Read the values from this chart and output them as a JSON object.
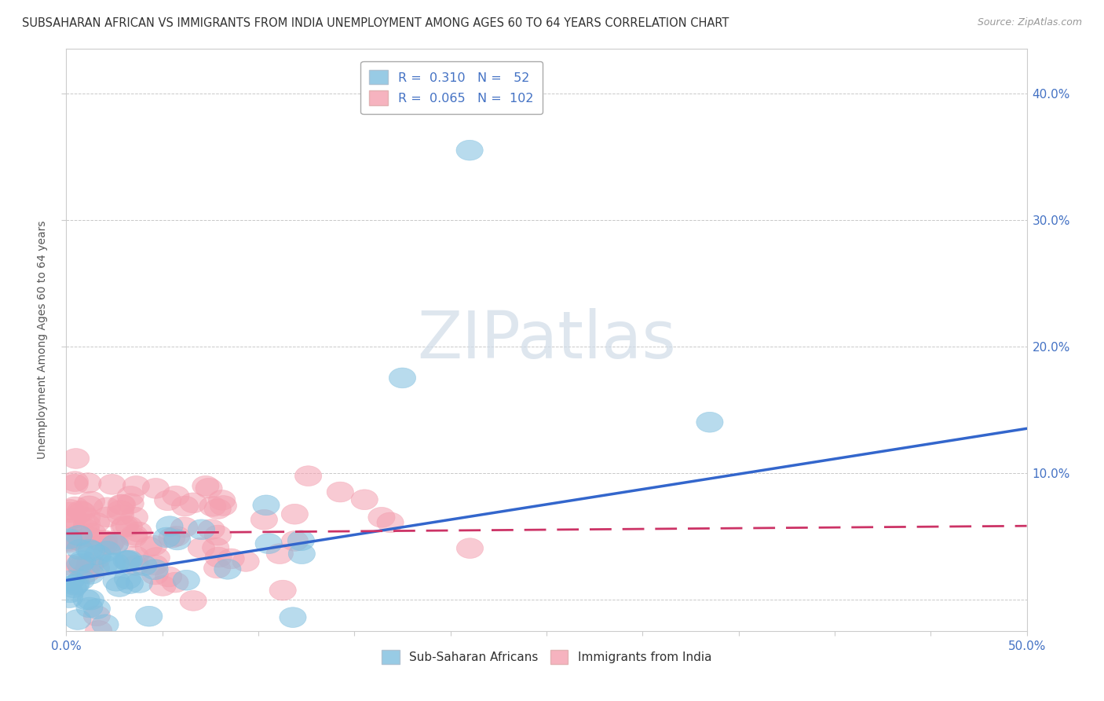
{
  "title": "SUBSAHARAN AFRICAN VS IMMIGRANTS FROM INDIA UNEMPLOYMENT AMONG AGES 60 TO 64 YEARS CORRELATION CHART",
  "source": "Source: ZipAtlas.com",
  "ylabel": "Unemployment Among Ages 60 to 64 years",
  "xlim": [
    0.0,
    0.5
  ],
  "ylim": [
    -0.025,
    0.435
  ],
  "xticks": [
    0.0,
    0.05,
    0.1,
    0.15,
    0.2,
    0.25,
    0.3,
    0.35,
    0.4,
    0.45,
    0.5
  ],
  "yticks": [
    0.0,
    0.1,
    0.2,
    0.3,
    0.4
  ],
  "ytick_labels_right": [
    "",
    "10.0%",
    "20.0%",
    "30.0%",
    "40.0%"
  ],
  "blue_color": "#7fbfdf",
  "pink_color": "#f4a0b0",
  "blue_fill": "#aad4ee",
  "pink_fill": "#f9c0cc",
  "blue_line_color": "#3366cc",
  "pink_line_color": "#cc3366",
  "legend_R_blue": "0.310",
  "legend_N_blue": "52",
  "legend_R_pink": "0.065",
  "legend_N_pink": "102",
  "watermark": "ZIPatlas",
  "legend_label_blue": "Sub-Saharan Africans",
  "legend_label_pink": "Immigrants from India",
  "blue_seed": 42,
  "pink_seed": 99,
  "grid_color": "#bbbbbb",
  "axis_color": "#4472c4",
  "background_color": "#ffffff",
  "blue_slope": 0.24,
  "blue_intercept": 0.015,
  "pink_slope": 0.012,
  "pink_intercept": 0.052
}
